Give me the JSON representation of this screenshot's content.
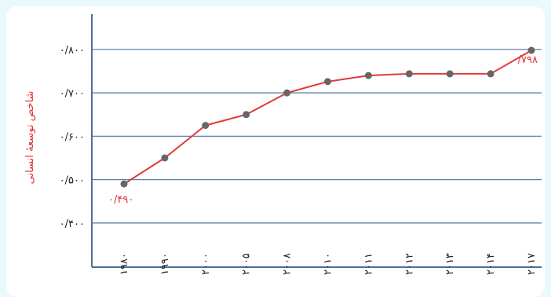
{
  "chart_data": {
    "type": "line",
    "title": "",
    "ylabel": "شاخص توسعهٔ انسانی",
    "xlabel": "",
    "ylim": [
      0.35,
      0.85
    ],
    "yticks": [
      "۰/۴۰۰",
      "۰/۵۰۰",
      "۰/۶۰۰",
      "۰/۷۰۰",
      "۰/۸۰۰"
    ],
    "ytick_values": [
      0.4,
      0.5,
      0.6,
      0.7,
      0.8
    ],
    "grid": "horizontal",
    "categories": [
      "۱۹۸۰",
      "۱۹۹۰",
      "۲۰۰۰",
      "۲۰۰۵",
      "۲۰۰۸",
      "۲۰۱۰",
      "۲۰۱۱",
      "۲۰۱۲",
      "۲۰۱۳",
      "۲۰۱۴",
      "۲۰۱۷"
    ],
    "values": [
      0.49,
      0.55,
      0.625,
      0.65,
      0.7,
      0.726,
      0.74,
      0.744,
      0.744,
      0.744,
      0.798
    ],
    "data_labels": [
      {
        "index": 0,
        "text": "۰/۴۹۰"
      },
      {
        "index": 10,
        "text": "۰/۷۹۸"
      }
    ],
    "line_color": "#e03a3a",
    "marker_color": "#666666",
    "grid_color": "#5a7fa8"
  }
}
